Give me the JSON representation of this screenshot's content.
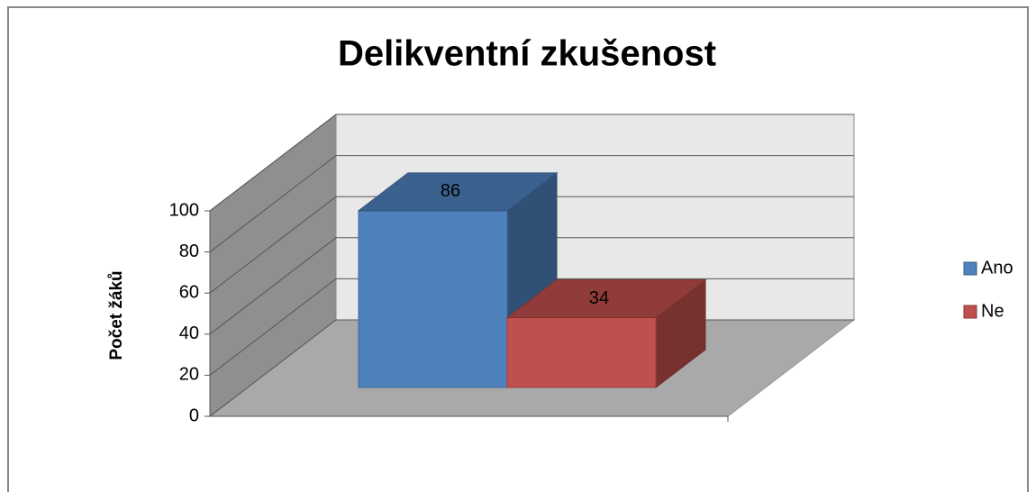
{
  "chart_data": {
    "type": "bar3d",
    "title": "Delikventní zkušenost",
    "y_label": "Počet žáků",
    "categories": [
      null
    ],
    "series": [
      {
        "name": "Ano",
        "color": "#4f81bd",
        "values": [
          86
        ]
      },
      {
        "name": "Ne",
        "color": "#c0504d",
        "values": [
          34
        ]
      }
    ],
    "ylim": [
      0,
      100
    ],
    "yticks": [
      0,
      20,
      40,
      60,
      80,
      100
    ],
    "grid": true,
    "legend": "right"
  }
}
